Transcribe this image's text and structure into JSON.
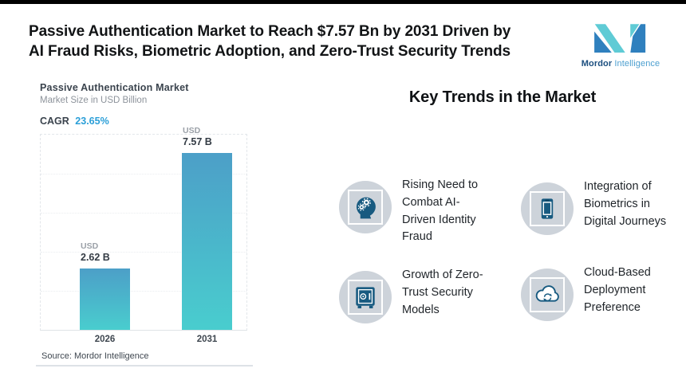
{
  "page": {
    "background": "#ffffff",
    "top_strip_color": "#000000"
  },
  "header": {
    "title_lines": [
      "Passive Authentication Market to Reach $7.57 Bn by 2031 Driven by",
      "AI Fraud Risks, Biometric Adoption, and Zero-Trust Security Trends"
    ],
    "logo": {
      "text_bold": "Mordor",
      "text_light": "Intelligence",
      "teal": "#5FCBD5",
      "blue": "#2F80BE"
    }
  },
  "chart": {
    "title": "Passive Authentication Market",
    "subtitle": "Market Size in USD Billion",
    "cagr_label": "CAGR",
    "cagr_value": "23.65%",
    "cagr_value_color": "#2B9FD8",
    "source": "Source: Mordor Intelligence",
    "bar_gradient_top": "#4C9FC8",
    "bar_gradient_bottom": "#49CDCE",
    "bars": [
      {
        "currency": "USD",
        "value_label": "2.62 B",
        "year": "2026"
      },
      {
        "currency": "USD",
        "value_label": "7.57 B",
        "year": "2031"
      }
    ]
  },
  "chart_data": {
    "type": "bar",
    "categories": [
      "2026",
      "2031"
    ],
    "values": [
      2.62,
      7.57
    ],
    "series_unit": "USD Billion",
    "title": "Passive Authentication Market",
    "subtitle": "Market Size in USD Billion",
    "cagr_percent": 23.65,
    "bar_labels": [
      "USD 2.62 B",
      "USD 7.57 B"
    ],
    "xlabel": "",
    "ylabel": "Market Size in USD Billion",
    "ylim": [
      0,
      8.4
    ],
    "grid": "horizontal-dotted",
    "legend": "none",
    "source": "Source: Mordor Intelligence"
  },
  "trends": {
    "heading": "Key Trends in the Market",
    "icon_circle_color": "#CDD3DA",
    "icon_color": "#175A80",
    "items": [
      {
        "icon": "ai-head-gears-icon",
        "text": "Rising Need to\nCombat AI-\nDriven Identity\nFraud"
      },
      {
        "icon": "biometric-phone-icon",
        "text": "Integration of\nBiometrics in\nDigital Journeys"
      },
      {
        "icon": "zero-trust-vault-icon",
        "text": "Growth of Zero-\nTrust Security\nModels"
      },
      {
        "icon": "cloud-deployment-icon",
        "text": "Cloud-Based\nDeployment\nPreference"
      }
    ]
  }
}
